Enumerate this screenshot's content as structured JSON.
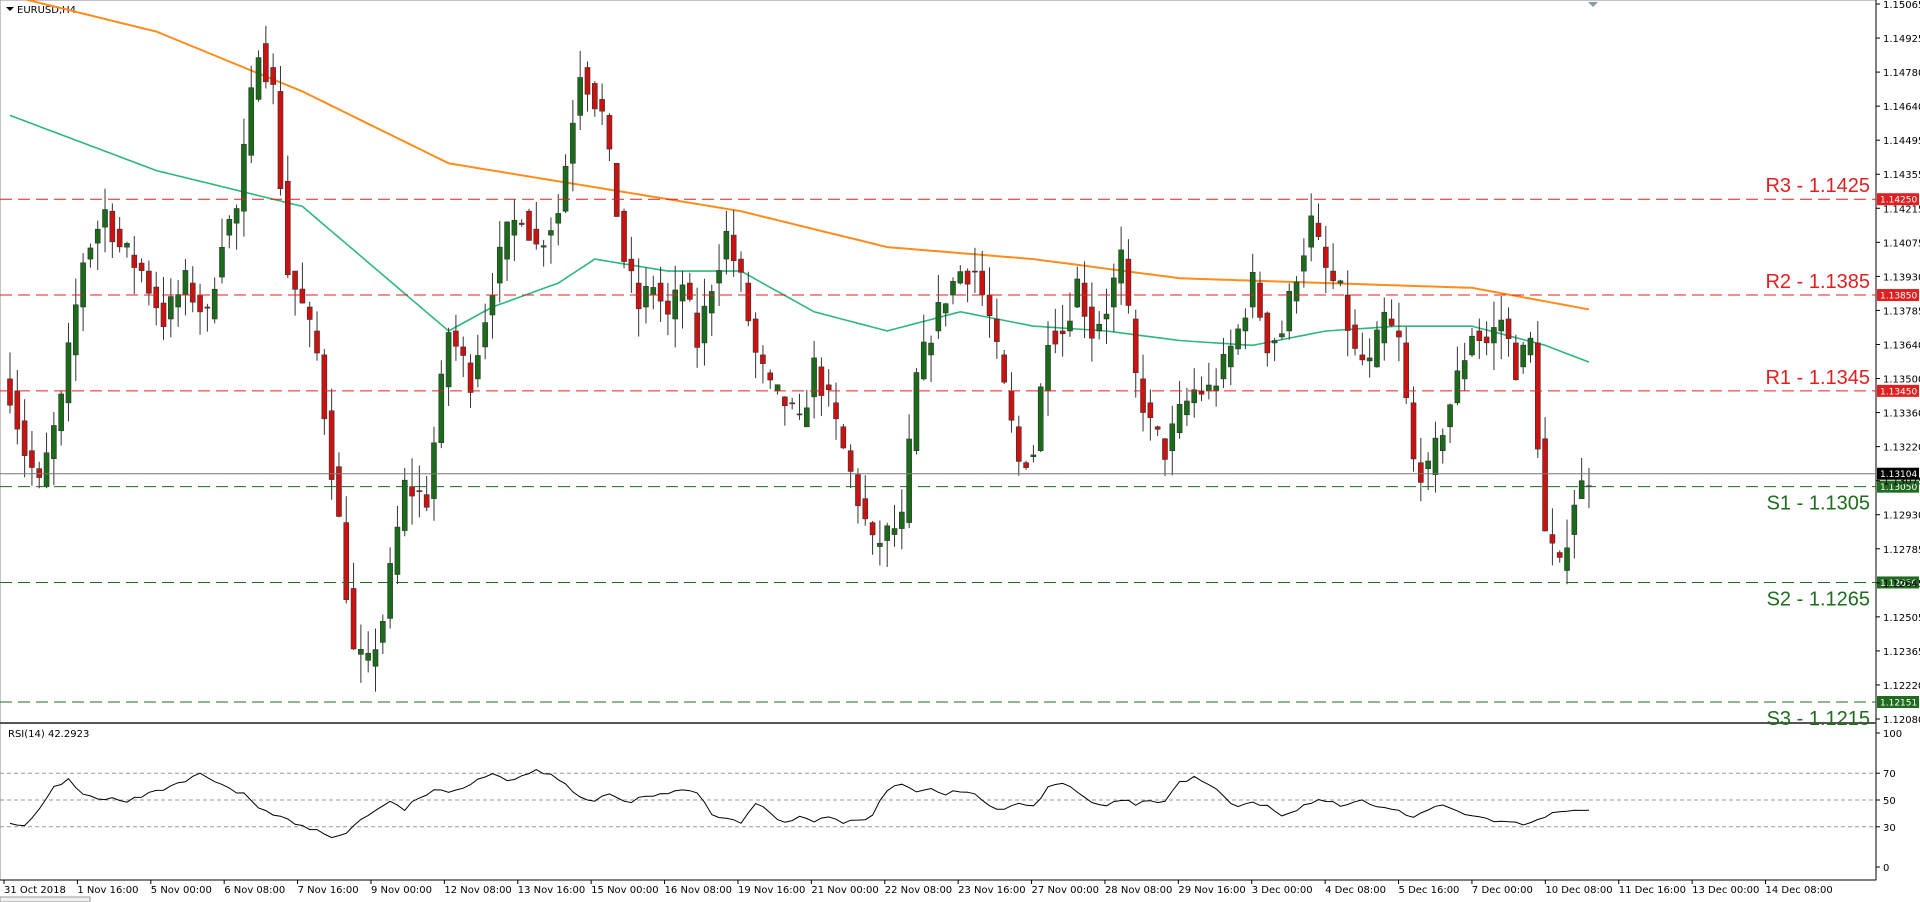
{
  "window": {
    "title": "EURUSD,H4"
  },
  "colors": {
    "bull": "#1a6b1a",
    "bear": "#cc1111",
    "ma_fast": "#2db87a",
    "ma_slow": "#ff8c1a",
    "resistance": "#e02020",
    "support": "#1f6b1f",
    "price_line": "#777777",
    "rsi": "#000000"
  },
  "chart_data": [
    {
      "type": "candlestick",
      "title": "EURUSD,H4",
      "ylim": [
        1.1208,
        1.15065
      ],
      "y_ticks": [
        "1.15065",
        "1.14925",
        "1.14780",
        "1.14640",
        "1.14495",
        "1.14355",
        "1.14215",
        "1.14075",
        "1.13930",
        "1.13785",
        "1.13640",
        "1.13500",
        "1.13360",
        "1.13220",
        "1.13075",
        "1.12930",
        "1.12785",
        "1.12645",
        "1.12505",
        "1.12365",
        "1.12220",
        "1.12080"
      ],
      "x_labels": [
        "31 Oct 2018",
        "1 Nov 16:00",
        "5 Nov 00:00",
        "6 Nov 08:00",
        "7 Nov 16:00",
        "9 Nov 00:00",
        "12 Nov 08:00",
        "13 Nov 16:00",
        "15 Nov 00:00",
        "16 Nov 08:00",
        "19 Nov 16:00",
        "21 Nov 00:00",
        "22 Nov 08:00",
        "23 Nov 16:00",
        "27 Nov 00:00",
        "28 Nov 08:00",
        "29 Nov 16:00",
        "3 Dec 00:00",
        "4 Dec 08:00",
        "5 Dec 16:00",
        "7 Dec 00:00",
        "10 Dec 08:00",
        "11 Dec 16:00",
        "13 Dec 00:00",
        "14 Dec 08:00"
      ],
      "close_anchors": [
        [
          0,
          1.1345
        ],
        [
          2,
          1.132
        ],
        [
          4,
          1.1305
        ],
        [
          7,
          1.134
        ],
        [
          10,
          1.14
        ],
        [
          13,
          1.142
        ],
        [
          15,
          1.1405
        ],
        [
          18,
          1.1395
        ],
        [
          21,
          1.1375
        ],
        [
          24,
          1.139
        ],
        [
          27,
          1.1375
        ],
        [
          29,
          1.141
        ],
        [
          31,
          1.142
        ],
        [
          34,
          1.149
        ],
        [
          36,
          1.147
        ],
        [
          38,
          1.1395
        ],
        [
          40,
          1.138
        ],
        [
          42,
          1.136
        ],
        [
          45,
          1.129
        ],
        [
          47,
          1.1235
        ],
        [
          49,
          1.123
        ],
        [
          51,
          1.125
        ],
        [
          54,
          1.1305
        ],
        [
          57,
          1.13
        ],
        [
          60,
          1.137
        ],
        [
          63,
          1.135
        ],
        [
          66,
          1.139
        ],
        [
          68,
          1.141
        ],
        [
          70,
          1.142
        ],
        [
          72,
          1.1405
        ],
        [
          75,
          1.142
        ],
        [
          78,
          1.148
        ],
        [
          81,
          1.146
        ],
        [
          84,
          1.14
        ],
        [
          86,
          1.138
        ],
        [
          88,
          1.139
        ],
        [
          90,
          1.1375
        ],
        [
          92,
          1.139
        ],
        [
          94,
          1.1365
        ],
        [
          96,
          1.139
        ],
        [
          98,
          1.141
        ],
        [
          100,
          1.139
        ],
        [
          102,
          1.136
        ],
        [
          104,
          1.1345
        ],
        [
          106,
          1.134
        ],
        [
          108,
          1.133
        ],
        [
          110,
          1.1355
        ],
        [
          112,
          1.134
        ],
        [
          114,
          1.132
        ],
        [
          116,
          1.13
        ],
        [
          118,
          1.128
        ],
        [
          120,
          1.1285
        ],
        [
          122,
          1.129
        ],
        [
          124,
          1.135
        ],
        [
          126,
          1.137
        ],
        [
          128,
          1.1385
        ],
        [
          130,
          1.1395
        ],
        [
          132,
          1.1395
        ],
        [
          134,
          1.1375
        ],
        [
          136,
          1.1345
        ],
        [
          138,
          1.1315
        ],
        [
          140,
          1.132
        ],
        [
          142,
          1.137
        ],
        [
          144,
          1.137
        ],
        [
          146,
          1.139
        ],
        [
          148,
          1.137
        ],
        [
          150,
          1.138
        ],
        [
          152,
          1.14
        ],
        [
          154,
          1.135
        ],
        [
          156,
          1.133
        ],
        [
          158,
          1.132
        ],
        [
          160,
          1.1335
        ],
        [
          162,
          1.1345
        ],
        [
          164,
          1.1345
        ],
        [
          166,
          1.1355
        ],
        [
          168,
          1.137
        ],
        [
          170,
          1.139
        ],
        [
          172,
          1.1365
        ],
        [
          174,
          1.137
        ],
        [
          176,
          1.1395
        ],
        [
          178,
          1.1415
        ],
        [
          180,
          1.1395
        ],
        [
          182,
          1.1385
        ],
        [
          184,
          1.136
        ],
        [
          186,
          1.1355
        ],
        [
          188,
          1.1375
        ],
        [
          190,
          1.1365
        ],
        [
          192,
          1.1315
        ],
        [
          194,
          1.131
        ],
        [
          196,
          1.133
        ],
        [
          198,
          1.135
        ],
        [
          200,
          1.137
        ],
        [
          202,
          1.1365
        ],
        [
          204,
          1.1375
        ],
        [
          206,
          1.1355
        ],
        [
          208,
          1.1365
        ],
        [
          210,
          1.1285
        ],
        [
          212,
          1.127
        ],
        [
          214,
          1.13
        ],
        [
          216,
          1.131
        ]
      ],
      "ma_fast": {
        "x": [
          0,
          20,
          40,
          60,
          66,
          75,
          80,
          90,
          100,
          110,
          120,
          130,
          140,
          150,
          160,
          170,
          180,
          190,
          200,
          210,
          216
        ],
        "y": [
          1.146,
          1.1437,
          1.1422,
          1.137,
          1.138,
          1.139,
          1.14,
          1.1395,
          1.1395,
          1.1378,
          1.137,
          1.1378,
          1.1372,
          1.137,
          1.1366,
          1.1364,
          1.137,
          1.1372,
          1.1372,
          1.1364,
          1.1357
        ]
      },
      "ma_slow": {
        "x": [
          0,
          20,
          40,
          60,
          80,
          100,
          120,
          140,
          160,
          180,
          200,
          216
        ],
        "y": [
          1.151,
          1.1495,
          1.147,
          1.144,
          1.143,
          1.142,
          1.1405,
          1.14,
          1.1392,
          1.139,
          1.1388,
          1.1379
        ]
      },
      "levels": [
        {
          "label": "R3 - 1.1425",
          "value": 1.1425,
          "tag": "1.14250",
          "kind": "resistance"
        },
        {
          "label": "R2 - 1.1385",
          "value": 1.1385,
          "tag": "1.13850",
          "kind": "resistance"
        },
        {
          "label": "R1 - 1.1345",
          "value": 1.1345,
          "tag": "1.13450",
          "kind": "resistance"
        },
        {
          "label": "S1 - 1.1305",
          "value": 1.1305,
          "tag": "1.13050",
          "kind": "support"
        },
        {
          "label": "S2 - 1.1265",
          "value": 1.1265,
          "tag": "1.12650",
          "kind": "support"
        },
        {
          "label": "S3 - 1.1215",
          "value": 1.12151,
          "tag": "1.12151",
          "kind": "support"
        }
      ],
      "current_price": {
        "value": 1.13104,
        "tag": "1.13104"
      }
    },
    {
      "type": "line",
      "title": "RSI(14) 42.2923",
      "ylim": [
        0,
        100
      ],
      "y_ticks": [
        "100",
        "70",
        "50",
        "30",
        "0"
      ],
      "series_anchors": [
        [
          0,
          34
        ],
        [
          2,
          30
        ],
        [
          4,
          42
        ],
        [
          6,
          60
        ],
        [
          8,
          65
        ],
        [
          10,
          55
        ],
        [
          12,
          50
        ],
        [
          14,
          51
        ],
        [
          16,
          48
        ],
        [
          18,
          53
        ],
        [
          20,
          56
        ],
        [
          22,
          60
        ],
        [
          24,
          63
        ],
        [
          26,
          70
        ],
        [
          28,
          63
        ],
        [
          30,
          58
        ],
        [
          32,
          54
        ],
        [
          34,
          45
        ],
        [
          36,
          40
        ],
        [
          38,
          35
        ],
        [
          40,
          30
        ],
        [
          42,
          27
        ],
        [
          44,
          22
        ],
        [
          46,
          26
        ],
        [
          48,
          35
        ],
        [
          50,
          43
        ],
        [
          52,
          48
        ],
        [
          54,
          43
        ],
        [
          56,
          52
        ],
        [
          58,
          57
        ],
        [
          60,
          55
        ],
        [
          62,
          60
        ],
        [
          64,
          66
        ],
        [
          66,
          70
        ],
        [
          68,
          65
        ],
        [
          70,
          68
        ],
        [
          72,
          72
        ],
        [
          74,
          70
        ],
        [
          76,
          62
        ],
        [
          78,
          52
        ],
        [
          80,
          48
        ],
        [
          82,
          55
        ],
        [
          84,
          48
        ],
        [
          86,
          51
        ],
        [
          88,
          53
        ],
        [
          90,
          55
        ],
        [
          92,
          57
        ],
        [
          94,
          55
        ],
        [
          96,
          40
        ],
        [
          98,
          35
        ],
        [
          100,
          33
        ],
        [
          102,
          48
        ],
        [
          104,
          40
        ],
        [
          106,
          33
        ],
        [
          108,
          38
        ],
        [
          110,
          35
        ],
        [
          112,
          37
        ],
        [
          114,
          33
        ],
        [
          116,
          35
        ],
        [
          118,
          38
        ],
        [
          120,
          58
        ],
        [
          122,
          63
        ],
        [
          124,
          57
        ],
        [
          126,
          58
        ],
        [
          128,
          55
        ],
        [
          130,
          56
        ],
        [
          132,
          55
        ],
        [
          134,
          45
        ],
        [
          136,
          42
        ],
        [
          138,
          48
        ],
        [
          140,
          45
        ],
        [
          142,
          60
        ],
        [
          144,
          63
        ],
        [
          146,
          55
        ],
        [
          148,
          48
        ],
        [
          150,
          45
        ],
        [
          152,
          50
        ],
        [
          154,
          47
        ],
        [
          156,
          49
        ],
        [
          158,
          48
        ],
        [
          160,
          63
        ],
        [
          162,
          67
        ],
        [
          164,
          62
        ],
        [
          166,
          52
        ],
        [
          168,
          45
        ],
        [
          170,
          48
        ],
        [
          172,
          45
        ],
        [
          174,
          38
        ],
        [
          176,
          42
        ],
        [
          178,
          48
        ],
        [
          180,
          50
        ],
        [
          182,
          45
        ],
        [
          184,
          50
        ],
        [
          186,
          48
        ],
        [
          188,
          44
        ],
        [
          190,
          41
        ],
        [
          192,
          38
        ],
        [
          194,
          43
        ],
        [
          196,
          45
        ],
        [
          198,
          42
        ],
        [
          200,
          38
        ],
        [
          202,
          35
        ],
        [
          204,
          34
        ],
        [
          206,
          32
        ],
        [
          208,
          33
        ],
        [
          210,
          38
        ],
        [
          212,
          42
        ],
        [
          214,
          41
        ],
        [
          216,
          42.2923
        ]
      ]
    }
  ]
}
